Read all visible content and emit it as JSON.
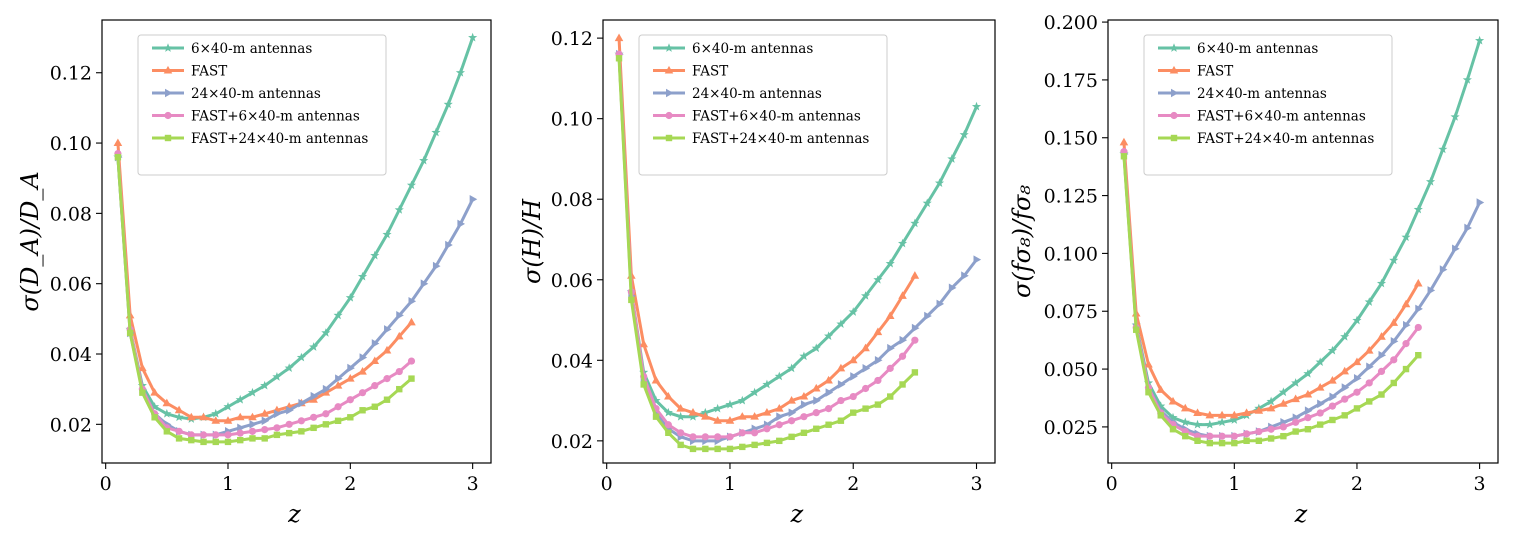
{
  "figure": {
    "description_free": true
  },
  "colors": {
    "6x40": "#66c2a5",
    "FAST": "#fc8d62",
    "24x40": "#8da0cb",
    "FAST+6x40": "#e78ac3",
    "FAST+24x40": "#a6d854"
  },
  "chart_data": [
    {
      "type": "line",
      "xlabel": "z",
      "ylabel": "σ(D_A)/D_A",
      "xlim": [
        -0.03,
        3.15
      ],
      "ylim": [
        0.009,
        0.135
      ],
      "xticks": [
        0,
        1,
        2,
        3
      ],
      "xtick_labels": [
        "0",
        "1",
        "2",
        "3"
      ],
      "yticks": [
        0.02,
        0.04,
        0.06,
        0.08,
        0.1,
        0.12
      ],
      "ytick_labels": [
        "0.02",
        "0.04",
        "0.06",
        "0.08",
        "0.10",
        "0.12"
      ],
      "legend": "top-left",
      "series": [
        {
          "key": "6x40",
          "name": "6×40-m antennas",
          "marker": "star",
          "x": [
            0.1,
            0.2,
            0.3,
            0.4,
            0.5,
            0.6,
            0.7,
            0.8,
            0.9,
            1.0,
            1.1,
            1.2,
            1.3,
            1.4,
            1.5,
            1.6,
            1.7,
            1.8,
            1.9,
            2.0,
            2.1,
            2.2,
            2.3,
            2.4,
            2.5,
            2.6,
            2.7,
            2.8,
            2.9,
            3.0
          ],
          "values": [
            0.096,
            0.047,
            0.031,
            0.025,
            0.023,
            0.022,
            0.0215,
            0.022,
            0.023,
            0.025,
            0.027,
            0.029,
            0.031,
            0.0335,
            0.036,
            0.039,
            0.042,
            0.046,
            0.051,
            0.056,
            0.062,
            0.068,
            0.074,
            0.081,
            0.088,
            0.095,
            0.103,
            0.111,
            0.12,
            0.13
          ]
        },
        {
          "key": "FAST",
          "name": "FAST",
          "marker": "triangle-up",
          "x": [
            0.1,
            0.2,
            0.3,
            0.4,
            0.5,
            0.6,
            0.7,
            0.8,
            0.9,
            1.0,
            1.1,
            1.2,
            1.3,
            1.4,
            1.5,
            1.6,
            1.7,
            1.8,
            1.9,
            2.0,
            2.1,
            2.2,
            2.3,
            2.4,
            2.5
          ],
          "values": [
            0.1,
            0.051,
            0.036,
            0.029,
            0.026,
            0.024,
            0.022,
            0.022,
            0.021,
            0.021,
            0.022,
            0.022,
            0.023,
            0.024,
            0.025,
            0.026,
            0.027,
            0.029,
            0.031,
            0.033,
            0.035,
            0.038,
            0.041,
            0.045,
            0.049
          ]
        },
        {
          "key": "24x40",
          "name": "24×40-m antennas",
          "marker": "triangle-right",
          "x": [
            0.1,
            0.2,
            0.3,
            0.4,
            0.5,
            0.6,
            0.7,
            0.8,
            0.9,
            1.0,
            1.1,
            1.2,
            1.3,
            1.4,
            1.5,
            1.6,
            1.7,
            1.8,
            1.9,
            2.0,
            2.1,
            2.2,
            2.3,
            2.4,
            2.5,
            2.6,
            2.7,
            2.8,
            2.9,
            3.0
          ],
          "values": [
            0.096,
            0.046,
            0.03,
            0.023,
            0.02,
            0.018,
            0.017,
            0.017,
            0.017,
            0.018,
            0.019,
            0.02,
            0.021,
            0.023,
            0.024,
            0.026,
            0.028,
            0.03,
            0.033,
            0.036,
            0.039,
            0.043,
            0.047,
            0.051,
            0.055,
            0.06,
            0.065,
            0.071,
            0.077,
            0.084
          ]
        },
        {
          "key": "FAST+6x40",
          "name": "FAST+6×40-m antennas",
          "marker": "circle",
          "x": [
            0.1,
            0.2,
            0.3,
            0.4,
            0.5,
            0.6,
            0.7,
            0.8,
            0.9,
            1.0,
            1.1,
            1.2,
            1.3,
            1.4,
            1.5,
            1.6,
            1.7,
            1.8,
            1.9,
            2.0,
            2.1,
            2.2,
            2.3,
            2.4,
            2.5
          ],
          "values": [
            0.097,
            0.047,
            0.03,
            0.023,
            0.019,
            0.018,
            0.017,
            0.017,
            0.017,
            0.017,
            0.0175,
            0.018,
            0.0185,
            0.019,
            0.02,
            0.021,
            0.022,
            0.023,
            0.025,
            0.027,
            0.029,
            0.031,
            0.033,
            0.035,
            0.038
          ]
        },
        {
          "key": "FAST+24x40",
          "name": "FAST+24×40-m antennas",
          "marker": "square",
          "x": [
            0.1,
            0.2,
            0.3,
            0.4,
            0.5,
            0.6,
            0.7,
            0.8,
            0.9,
            1.0,
            1.1,
            1.2,
            1.3,
            1.4,
            1.5,
            1.6,
            1.7,
            1.8,
            1.9,
            2.0,
            2.1,
            2.2,
            2.3,
            2.4,
            2.5
          ],
          "values": [
            0.096,
            0.046,
            0.029,
            0.022,
            0.018,
            0.016,
            0.0155,
            0.015,
            0.015,
            0.015,
            0.0155,
            0.016,
            0.016,
            0.017,
            0.0175,
            0.018,
            0.019,
            0.02,
            0.021,
            0.022,
            0.024,
            0.025,
            0.027,
            0.03,
            0.033
          ]
        }
      ]
    },
    {
      "type": "line",
      "xlabel": "z",
      "ylabel": "σ(H)/H",
      "xlim": [
        -0.03,
        3.15
      ],
      "ylim": [
        0.0145,
        0.1245
      ],
      "xticks": [
        0,
        1,
        2,
        3
      ],
      "xtick_labels": [
        "0",
        "1",
        "2",
        "3"
      ],
      "yticks": [
        0.02,
        0.04,
        0.06,
        0.08,
        0.1,
        0.12
      ],
      "ytick_labels": [
        "0.02",
        "0.04",
        "0.06",
        "0.08",
        "0.10",
        "0.12"
      ],
      "legend": "top-left",
      "series": [
        {
          "key": "6x40",
          "name": "6×40-m antennas",
          "marker": "star",
          "x": [
            0.1,
            0.2,
            0.3,
            0.4,
            0.5,
            0.6,
            0.7,
            0.8,
            0.9,
            1.0,
            1.1,
            1.2,
            1.3,
            1.4,
            1.5,
            1.6,
            1.7,
            1.8,
            1.9,
            2.0,
            2.1,
            2.2,
            2.3,
            2.4,
            2.5,
            2.6,
            2.7,
            2.8,
            2.9,
            3.0
          ],
          "values": [
            0.116,
            0.057,
            0.037,
            0.03,
            0.027,
            0.026,
            0.026,
            0.027,
            0.028,
            0.029,
            0.03,
            0.032,
            0.034,
            0.036,
            0.038,
            0.041,
            0.043,
            0.046,
            0.049,
            0.052,
            0.056,
            0.06,
            0.064,
            0.069,
            0.074,
            0.079,
            0.084,
            0.09,
            0.096,
            0.103
          ]
        },
        {
          "key": "FAST",
          "name": "FAST",
          "marker": "triangle-up",
          "x": [
            0.1,
            0.2,
            0.3,
            0.4,
            0.5,
            0.6,
            0.7,
            0.8,
            0.9,
            1.0,
            1.1,
            1.2,
            1.3,
            1.4,
            1.5,
            1.6,
            1.7,
            1.8,
            1.9,
            2.0,
            2.1,
            2.2,
            2.3,
            2.4,
            2.5
          ],
          "values": [
            0.12,
            0.061,
            0.044,
            0.035,
            0.031,
            0.028,
            0.027,
            0.026,
            0.025,
            0.025,
            0.026,
            0.026,
            0.027,
            0.028,
            0.03,
            0.031,
            0.033,
            0.035,
            0.038,
            0.04,
            0.043,
            0.047,
            0.051,
            0.056,
            0.061
          ]
        },
        {
          "key": "24x40",
          "name": "24×40-m antennas",
          "marker": "triangle-right",
          "x": [
            0.1,
            0.2,
            0.3,
            0.4,
            0.5,
            0.6,
            0.7,
            0.8,
            0.9,
            1.0,
            1.1,
            1.2,
            1.3,
            1.4,
            1.5,
            1.6,
            1.7,
            1.8,
            1.9,
            2.0,
            2.1,
            2.2,
            2.3,
            2.4,
            2.5,
            2.6,
            2.7,
            2.8,
            2.9,
            3.0
          ],
          "values": [
            0.116,
            0.056,
            0.035,
            0.027,
            0.023,
            0.021,
            0.02,
            0.02,
            0.02,
            0.021,
            0.022,
            0.023,
            0.024,
            0.026,
            0.027,
            0.029,
            0.03,
            0.032,
            0.034,
            0.036,
            0.038,
            0.04,
            0.043,
            0.045,
            0.048,
            0.051,
            0.054,
            0.058,
            0.061,
            0.065
          ]
        },
        {
          "key": "FAST+6x40",
          "name": "FAST+6×40-m antennas",
          "marker": "circle",
          "x": [
            0.1,
            0.2,
            0.3,
            0.4,
            0.5,
            0.6,
            0.7,
            0.8,
            0.9,
            1.0,
            1.1,
            1.2,
            1.3,
            1.4,
            1.5,
            1.6,
            1.7,
            1.8,
            1.9,
            2.0,
            2.1,
            2.2,
            2.3,
            2.4,
            2.5
          ],
          "values": [
            0.116,
            0.057,
            0.036,
            0.028,
            0.024,
            0.022,
            0.021,
            0.021,
            0.021,
            0.021,
            0.022,
            0.022,
            0.023,
            0.024,
            0.025,
            0.026,
            0.027,
            0.028,
            0.03,
            0.031,
            0.033,
            0.035,
            0.038,
            0.041,
            0.045
          ]
        },
        {
          "key": "FAST+24x40",
          "name": "FAST+24×40-m antennas",
          "marker": "square",
          "x": [
            0.1,
            0.2,
            0.3,
            0.4,
            0.5,
            0.6,
            0.7,
            0.8,
            0.9,
            1.0,
            1.1,
            1.2,
            1.3,
            1.4,
            1.5,
            1.6,
            1.7,
            1.8,
            1.9,
            2.0,
            2.1,
            2.2,
            2.3,
            2.4,
            2.5
          ],
          "values": [
            0.115,
            0.055,
            0.034,
            0.026,
            0.022,
            0.019,
            0.018,
            0.018,
            0.018,
            0.018,
            0.0185,
            0.019,
            0.0195,
            0.02,
            0.021,
            0.022,
            0.023,
            0.024,
            0.025,
            0.027,
            0.028,
            0.029,
            0.031,
            0.034,
            0.037
          ]
        }
      ]
    },
    {
      "type": "line",
      "xlabel": "z",
      "ylabel": "σ(fσ₈)/fσ₈",
      "xlim": [
        -0.03,
        3.15
      ],
      "ylim": [
        0.0094,
        0.2009
      ],
      "xticks": [
        0,
        1,
        2,
        3
      ],
      "xtick_labels": [
        "0",
        "1",
        "2",
        "3"
      ],
      "yticks": [
        0.025,
        0.05,
        0.075,
        0.1,
        0.125,
        0.15,
        0.175,
        0.2
      ],
      "ytick_labels": [
        "0.025",
        "0.050",
        "0.075",
        "0.100",
        "0.125",
        "0.150",
        "0.175",
        "0.200"
      ],
      "legend": "top-left",
      "series": [
        {
          "key": "6x40",
          "name": "6×40-m antennas",
          "marker": "star",
          "x": [
            0.1,
            0.2,
            0.3,
            0.4,
            0.5,
            0.6,
            0.7,
            0.8,
            0.9,
            1.0,
            1.1,
            1.2,
            1.3,
            1.4,
            1.5,
            1.6,
            1.7,
            1.8,
            1.9,
            2.0,
            2.1,
            2.2,
            2.3,
            2.4,
            2.5,
            2.6,
            2.7,
            2.8,
            2.9,
            3.0
          ],
          "values": [
            0.143,
            0.069,
            0.044,
            0.034,
            0.029,
            0.027,
            0.026,
            0.026,
            0.027,
            0.028,
            0.03,
            0.033,
            0.036,
            0.04,
            0.044,
            0.048,
            0.053,
            0.058,
            0.064,
            0.071,
            0.079,
            0.087,
            0.097,
            0.107,
            0.119,
            0.131,
            0.145,
            0.159,
            0.175,
            0.192
          ]
        },
        {
          "key": "FAST",
          "name": "FAST",
          "marker": "triangle-up",
          "x": [
            0.1,
            0.2,
            0.3,
            0.4,
            0.5,
            0.6,
            0.7,
            0.8,
            0.9,
            1.0,
            1.1,
            1.2,
            1.3,
            1.4,
            1.5,
            1.6,
            1.7,
            1.8,
            1.9,
            2.0,
            2.1,
            2.2,
            2.3,
            2.4,
            2.5
          ],
          "values": [
            0.148,
            0.074,
            0.052,
            0.041,
            0.036,
            0.033,
            0.031,
            0.03,
            0.03,
            0.03,
            0.031,
            0.032,
            0.033,
            0.035,
            0.037,
            0.039,
            0.042,
            0.045,
            0.049,
            0.053,
            0.058,
            0.064,
            0.07,
            0.078,
            0.087
          ]
        },
        {
          "key": "24x40",
          "name": "24×40-m antennas",
          "marker": "triangle-right",
          "x": [
            0.1,
            0.2,
            0.3,
            0.4,
            0.5,
            0.6,
            0.7,
            0.8,
            0.9,
            1.0,
            1.1,
            1.2,
            1.3,
            1.4,
            1.5,
            1.6,
            1.7,
            1.8,
            1.9,
            2.0,
            2.1,
            2.2,
            2.3,
            2.4,
            2.5,
            2.6,
            2.7,
            2.8,
            2.9,
            3.0
          ],
          "values": [
            0.143,
            0.068,
            0.042,
            0.032,
            0.027,
            0.024,
            0.022,
            0.021,
            0.021,
            0.021,
            0.022,
            0.023,
            0.025,
            0.027,
            0.029,
            0.032,
            0.035,
            0.038,
            0.042,
            0.046,
            0.051,
            0.056,
            0.062,
            0.069,
            0.076,
            0.084,
            0.093,
            0.102,
            0.111,
            0.122
          ]
        },
        {
          "key": "FAST+6x40",
          "name": "FAST+6×40-m antennas",
          "marker": "circle",
          "x": [
            0.1,
            0.2,
            0.3,
            0.4,
            0.5,
            0.6,
            0.7,
            0.8,
            0.9,
            1.0,
            1.1,
            1.2,
            1.3,
            1.4,
            1.5,
            1.6,
            1.7,
            1.8,
            1.9,
            2.0,
            2.1,
            2.2,
            2.3,
            2.4,
            2.5
          ],
          "values": [
            0.144,
            0.068,
            0.042,
            0.031,
            0.026,
            0.023,
            0.021,
            0.021,
            0.021,
            0.021,
            0.022,
            0.023,
            0.024,
            0.025,
            0.027,
            0.029,
            0.031,
            0.034,
            0.037,
            0.04,
            0.044,
            0.049,
            0.054,
            0.061,
            0.068
          ]
        },
        {
          "key": "FAST+24x40",
          "name": "FAST+24×40-m antennas",
          "marker": "square",
          "x": [
            0.1,
            0.2,
            0.3,
            0.4,
            0.5,
            0.6,
            0.7,
            0.8,
            0.9,
            1.0,
            1.1,
            1.2,
            1.3,
            1.4,
            1.5,
            1.6,
            1.7,
            1.8,
            1.9,
            2.0,
            2.1,
            2.2,
            2.3,
            2.4,
            2.5
          ],
          "values": [
            0.142,
            0.067,
            0.04,
            0.03,
            0.024,
            0.021,
            0.019,
            0.018,
            0.018,
            0.018,
            0.019,
            0.019,
            0.02,
            0.021,
            0.023,
            0.024,
            0.026,
            0.028,
            0.03,
            0.033,
            0.036,
            0.039,
            0.044,
            0.05,
            0.056
          ]
        }
      ]
    }
  ]
}
